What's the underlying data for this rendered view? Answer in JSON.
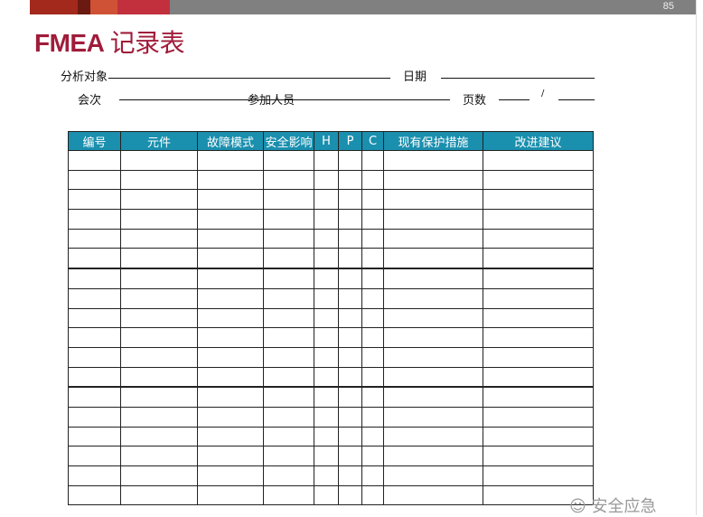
{
  "slide": {
    "page_number": "85",
    "title_latin": "FMEA",
    "title_cn": "记录表",
    "colors": {
      "title": "#a01c3a",
      "header_bg": "#1a8fae",
      "top_bar": "#808080"
    }
  },
  "form": {
    "analysis_object": "分析对象",
    "date": "日期",
    "session": "会次",
    "participants": "参加人员",
    "pages": "页数",
    "page_separator": "/"
  },
  "table": {
    "headers": [
      "编号",
      "元件",
      "故障模式",
      "安全影响",
      "H",
      "P",
      "C",
      "现有保护措施",
      "改进建议"
    ]
  },
  "watermark": {
    "icon": "wechat-icon",
    "text": "安全应急"
  }
}
